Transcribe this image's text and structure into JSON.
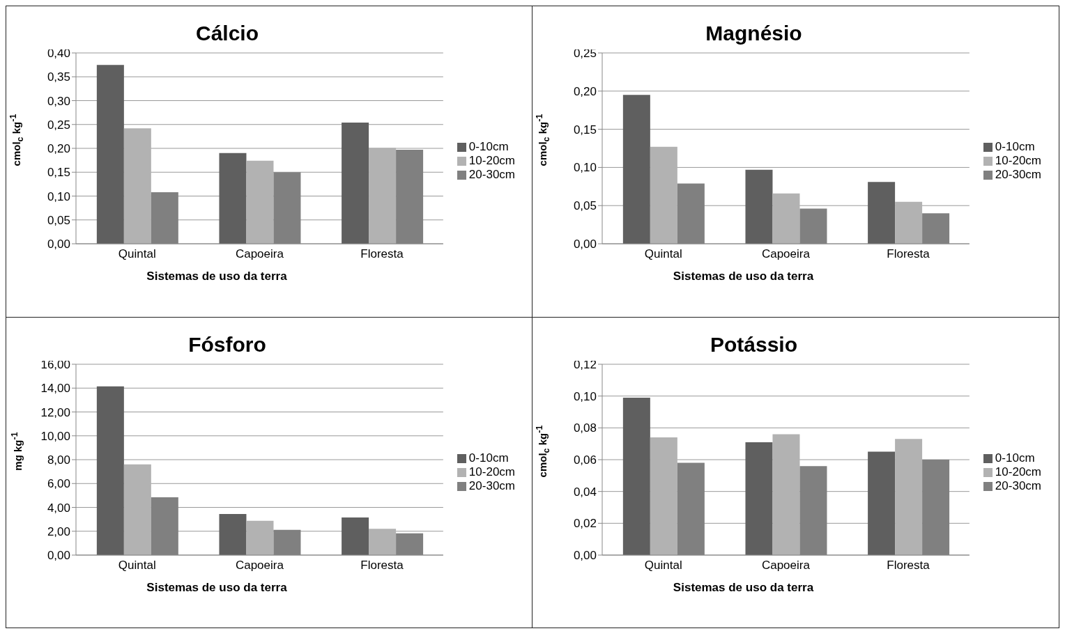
{
  "chart_data": [
    {
      "type": "bar",
      "title": "Cálcio",
      "xlabel": "Sistemas de uso da terra",
      "ylabel": "cmol$_{c}$ kg$^{-1}$",
      "categories": [
        "Quintal",
        "Capoeira",
        "Floresta"
      ],
      "series": [
        {
          "name": "0-10cm",
          "color": "#5f5f5f",
          "values": [
            0.375,
            0.19,
            0.254
          ]
        },
        {
          "name": "10-20cm",
          "color": "#b2b2b2",
          "values": [
            0.242,
            0.174,
            0.201
          ]
        },
        {
          "name": "20-30cm",
          "color": "#808080",
          "values": [
            0.108,
            0.15,
            0.197
          ]
        }
      ],
      "ylim": [
        0,
        0.4
      ],
      "yticks": [
        {
          "value": 0,
          "label": "0,00"
        },
        {
          "value": 0.05,
          "label": "0,05"
        },
        {
          "value": 0.1,
          "label": "0,10"
        },
        {
          "value": 0.15,
          "label": "0,15"
        },
        {
          "value": 0.2,
          "label": "0,20"
        },
        {
          "value": 0.25,
          "label": "0,25"
        },
        {
          "value": 0.3,
          "label": "0,30"
        },
        {
          "value": 0.35,
          "label": "0,35"
        },
        {
          "value": 0.4,
          "label": "0,40"
        }
      ],
      "grid": "y",
      "legend": "right"
    },
    {
      "type": "bar",
      "title": "Magnésio",
      "xlabel": "Sistemas de uso da terra",
      "ylabel": "cmol$_{c}$ kg$^{-1}$",
      "categories": [
        "Quintal",
        "Capoeira",
        "Floresta"
      ],
      "series": [
        {
          "name": "0-10cm",
          "color": "#5f5f5f",
          "values": [
            0.195,
            0.097,
            0.081
          ]
        },
        {
          "name": "10-20cm",
          "color": "#b2b2b2",
          "values": [
            0.127,
            0.066,
            0.055
          ]
        },
        {
          "name": "20-30cm",
          "color": "#808080",
          "values": [
            0.079,
            0.046,
            0.04
          ]
        }
      ],
      "ylim": [
        0,
        0.25
      ],
      "yticks": [
        {
          "value": 0,
          "label": "0,00"
        },
        {
          "value": 0.05,
          "label": "0,05"
        },
        {
          "value": 0.1,
          "label": "0,10"
        },
        {
          "value": 0.15,
          "label": "0,15"
        },
        {
          "value": 0.2,
          "label": "0,20"
        },
        {
          "value": 0.25,
          "label": "0,25"
        }
      ],
      "grid": "y",
      "legend": "right"
    },
    {
      "type": "bar",
      "title": "Fósforo",
      "xlabel": "Sistemas de uso da terra",
      "ylabel": "mg kg$^{-1}$",
      "categories": [
        "Quintal",
        "Capoeira",
        "Floresta"
      ],
      "series": [
        {
          "name": "0-10cm",
          "color": "#5f5f5f",
          "values": [
            14.15,
            3.45,
            3.15
          ]
        },
        {
          "name": "10-20cm",
          "color": "#b2b2b2",
          "values": [
            7.6,
            2.88,
            2.2
          ]
        },
        {
          "name": "20-30cm",
          "color": "#808080",
          "values": [
            4.85,
            2.12,
            1.82
          ]
        }
      ],
      "ylim": [
        0,
        16
      ],
      "yticks": [
        {
          "value": 0,
          "label": "0,00"
        },
        {
          "value": 2,
          "label": "2,00"
        },
        {
          "value": 4,
          "label": "4,00"
        },
        {
          "value": 6,
          "label": "6,00"
        },
        {
          "value": 8,
          "label": "8,00"
        },
        {
          "value": 10,
          "label": "10,00"
        },
        {
          "value": 12,
          "label": "12,00"
        },
        {
          "value": 14,
          "label": "14,00"
        },
        {
          "value": 16,
          "label": "16,00"
        }
      ],
      "grid": "y",
      "legend": "right"
    },
    {
      "type": "bar",
      "title": "Potássio",
      "xlabel": "Sistemas de uso da terra",
      "ylabel": "cmol$_{c}$ kg$^{-1}$",
      "categories": [
        "Quintal",
        "Capoeira",
        "Floresta"
      ],
      "series": [
        {
          "name": "0-10cm",
          "color": "#5f5f5f",
          "values": [
            0.099,
            0.071,
            0.065
          ]
        },
        {
          "name": "10-20cm",
          "color": "#b2b2b2",
          "values": [
            0.074,
            0.076,
            0.073
          ]
        },
        {
          "name": "20-30cm",
          "color": "#808080",
          "values": [
            0.058,
            0.056,
            0.06
          ]
        }
      ],
      "ylim": [
        0,
        0.12
      ],
      "yticks": [
        {
          "value": 0,
          "label": "0,00"
        },
        {
          "value": 0.02,
          "label": "0,02"
        },
        {
          "value": 0.04,
          "label": "0,04"
        },
        {
          "value": 0.06,
          "label": "0,06"
        },
        {
          "value": 0.08,
          "label": "0,08"
        },
        {
          "value": 0.1,
          "label": "0,10"
        },
        {
          "value": 0.12,
          "label": "0,12"
        }
      ],
      "grid": "y",
      "legend": "right"
    }
  ]
}
